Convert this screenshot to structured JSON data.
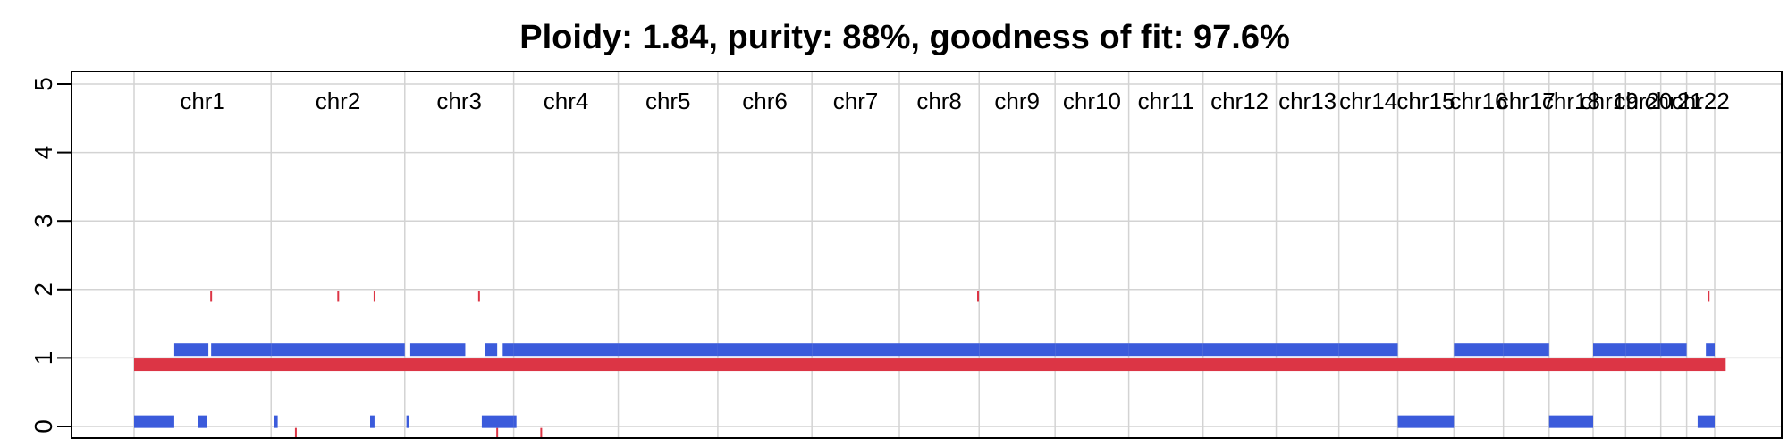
{
  "chart_data": {
    "type": "scatter",
    "title": "Ploidy: 1.84, purity: 88%, goodness of fit: 97.6%",
    "xlabel": "",
    "ylabel": "",
    "ylim": [
      -0.2,
      5.1
    ],
    "yticks": [
      "0",
      "1",
      "2",
      "3",
      "4",
      "5"
    ],
    "grid": true,
    "legend": "none",
    "colors": {
      "major_allele": "#3b5bdb",
      "minor_allele": "#dc3545",
      "grid": "#d3d3d3",
      "axis": "#000000"
    },
    "chromosomes": [
      "chr1",
      "chr2",
      "chr3",
      "chr4",
      "chr5",
      "chr6",
      "chr7",
      "chr8",
      "chr9",
      "chr10",
      "chr11",
      "chr12",
      "chr13",
      "chr14",
      "chr15",
      "chr16",
      "chr17",
      "chr18",
      "chr19",
      "chr20",
      "chr21",
      "chr22"
    ],
    "chromosome_lengths_mb": [
      249,
      243,
      198,
      190,
      181,
      171,
      159,
      145,
      138,
      134,
      135,
      133,
      114,
      107,
      102,
      90,
      83,
      80,
      59,
      64,
      47,
      51
    ],
    "series": [
      {
        "name": "",
        "color": "#dc3545",
        "segments": [
          {
            "chrom": "all",
            "start_mb": 0,
            "end_mb": 2893,
            "cn": 0.9
          }
        ],
        "points": [
          {
            "chrom": "chr1",
            "pos_mb": 140,
            "cn": 1.9
          },
          {
            "chrom": "chr2",
            "pos_mb": 122,
            "cn": 1.9
          },
          {
            "chrom": "chr2",
            "pos_mb": 188,
            "cn": 1.9
          },
          {
            "chrom": "chr3",
            "pos_mb": 135,
            "cn": 1.9
          },
          {
            "chrom": "chr8",
            "pos_mb": 143,
            "cn": 1.9
          },
          {
            "chrom": "chr22",
            "pos_mb": 40,
            "cn": 1.9
          },
          {
            "chrom": "chr2",
            "pos_mb": 45,
            "cn": -0.1
          },
          {
            "chrom": "chr3",
            "pos_mb": 168,
            "cn": -0.1
          },
          {
            "chrom": "chr3",
            "pos_mb": 248,
            "cn": -0.1
          }
        ]
      },
      {
        "name": "",
        "color": "#3b5bdb",
        "segments": [
          {
            "chrom": "chr1",
            "start_mb": 73,
            "end_mb": 135,
            "cn": 1.12
          },
          {
            "chrom": "chr1",
            "start_mb": 140,
            "end_mb": 249,
            "cn": 1.12
          },
          {
            "chrom": "chr2",
            "start_mb": 0,
            "end_mb": 243,
            "cn": 1.12
          },
          {
            "chrom": "chr3",
            "start_mb": 10,
            "end_mb": 110,
            "cn": 1.12
          },
          {
            "chrom": "chr3",
            "start_mb": 145,
            "end_mb": 168,
            "cn": 1.12
          },
          {
            "chrom": "chr3",
            "start_mb": 178,
            "end_mb": 198,
            "cn": 1.12
          },
          {
            "chrom": "chr4",
            "start_mb": 0,
            "end_mb": 190,
            "cn": 1.12
          },
          {
            "chrom": "chr5",
            "start_mb": 0,
            "end_mb": 181,
            "cn": 1.12
          },
          {
            "chrom": "chr6",
            "start_mb": 0,
            "end_mb": 171,
            "cn": 1.12
          },
          {
            "chrom": "chr7",
            "start_mb": 0,
            "end_mb": 159,
            "cn": 1.12
          },
          {
            "chrom": "chr8",
            "start_mb": 0,
            "end_mb": 145,
            "cn": 1.12
          },
          {
            "chrom": "chr9",
            "start_mb": 0,
            "end_mb": 138,
            "cn": 1.12
          },
          {
            "chrom": "chr10",
            "start_mb": 0,
            "end_mb": 134,
            "cn": 1.12
          },
          {
            "chrom": "chr11",
            "start_mb": 0,
            "end_mb": 135,
            "cn": 1.12
          },
          {
            "chrom": "chr12",
            "start_mb": 0,
            "end_mb": 133,
            "cn": 1.12
          },
          {
            "chrom": "chr13",
            "start_mb": 0,
            "end_mb": 114,
            "cn": 1.12
          },
          {
            "chrom": "chr14",
            "start_mb": 0,
            "end_mb": 107,
            "cn": 1.12
          },
          {
            "chrom": "chr16",
            "start_mb": 0,
            "end_mb": 90,
            "cn": 1.12
          },
          {
            "chrom": "chr17",
            "start_mb": 0,
            "end_mb": 83,
            "cn": 1.12
          },
          {
            "chrom": "chr19",
            "start_mb": 0,
            "end_mb": 59,
            "cn": 1.12
          },
          {
            "chrom": "chr20",
            "start_mb": 0,
            "end_mb": 64,
            "cn": 1.12
          },
          {
            "chrom": "chr21",
            "start_mb": 0,
            "end_mb": 47,
            "cn": 1.12
          },
          {
            "chrom": "chr22",
            "start_mb": 35,
            "end_mb": 51,
            "cn": 1.12
          },
          {
            "chrom": "chr1",
            "start_mb": 0,
            "end_mb": 73,
            "cn": 0.07
          },
          {
            "chrom": "chr1",
            "start_mb": 117,
            "end_mb": 132,
            "cn": 0.07
          },
          {
            "chrom": "chr2",
            "start_mb": 5,
            "end_mb": 12,
            "cn": 0.07
          },
          {
            "chrom": "chr2",
            "start_mb": 180,
            "end_mb": 188,
            "cn": 0.07
          },
          {
            "chrom": "chr3",
            "start_mb": 3,
            "end_mb": 8,
            "cn": 0.07
          },
          {
            "chrom": "chr3",
            "start_mb": 140,
            "end_mb": 198,
            "cn": 0.07
          },
          {
            "chrom": "chr4",
            "start_mb": 0,
            "end_mb": 5,
            "cn": 0.07
          },
          {
            "chrom": "chr15",
            "start_mb": 0,
            "end_mb": 102,
            "cn": 0.07
          },
          {
            "chrom": "chr18",
            "start_mb": 0,
            "end_mb": 80,
            "cn": 0.07
          },
          {
            "chrom": "chr22",
            "start_mb": 20,
            "end_mb": 51,
            "cn": 0.07
          }
        ],
        "points": []
      }
    ]
  }
}
